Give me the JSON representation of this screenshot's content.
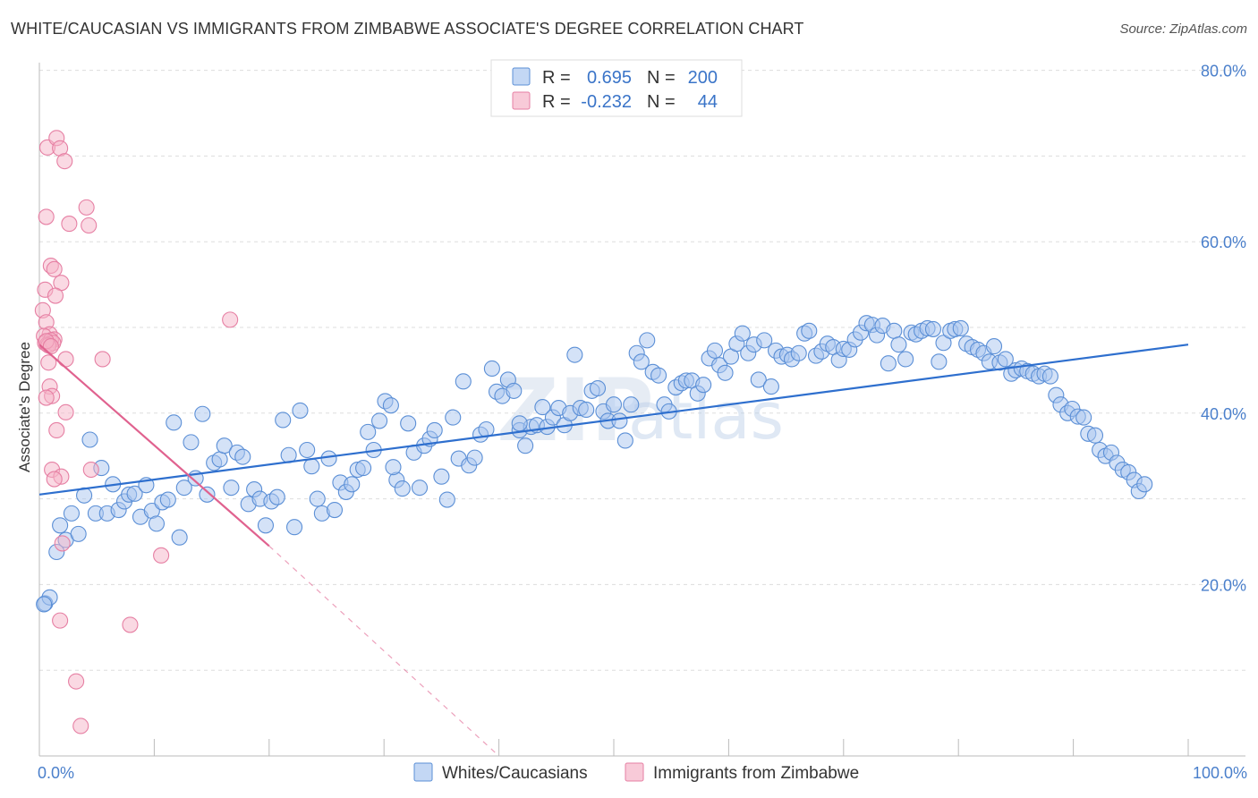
{
  "title": "WHITE/CAUCASIAN VS IMMIGRANTS FROM ZIMBABWE ASSOCIATE'S DEGREE CORRELATION CHART",
  "source": "Source: ZipAtlas.com",
  "watermark": {
    "zip": "ZIP",
    "atlas": "atlas"
  },
  "colors": {
    "blue_fill": "#a9c6ef",
    "blue_stroke": "#5b8fd6",
    "blue_line": "#2e6fce",
    "pink_fill": "#f5b3c8",
    "pink_stroke": "#e67fa3",
    "pink_line": "#e0628f",
    "grid": "#dddddd",
    "tick_text": "#4a7fcb"
  },
  "legend": {
    "r_label": "R =",
    "n_label": "N =",
    "rows": [
      {
        "series": "blue",
        "r": "0.695",
        "n": "200"
      },
      {
        "series": "pink",
        "r": "-0.232",
        "n": "44"
      }
    ]
  },
  "chart_data": {
    "type": "scatter",
    "title": "WHITE/CAUCASIAN VS IMMIGRANTS FROM ZIMBABWE ASSOCIATE'S DEGREE CORRELATION CHART",
    "xlabel": "",
    "ylabel": "Associate's Degree",
    "xlim": [
      0,
      100
    ],
    "ylim": [
      0,
      83
    ],
    "x_tick_labels": [
      "0.0%",
      "100.0%"
    ],
    "y_ticks": [
      20,
      40,
      60,
      80
    ],
    "y_tick_labels": [
      "20.0%",
      "40.0%",
      "60.0%",
      "80.0%"
    ],
    "grid": true,
    "legend_position": "top-center",
    "series": [
      {
        "name": "Whites/Caucasians",
        "color": "#a9c6ef",
        "trend": {
          "x": [
            0,
            100
          ],
          "y": [
            30.5,
            48.0
          ],
          "dashed_extension": false
        },
        "points": [
          [
            0.5,
            17.8
          ],
          [
            0.9,
            18.5
          ],
          [
            1.5,
            23.8
          ],
          [
            1.8,
            26.9
          ],
          [
            2.3,
            25.2
          ],
          [
            2.8,
            28.3
          ],
          [
            3.4,
            25.9
          ],
          [
            3.9,
            30.4
          ],
          [
            4.4,
            36.9
          ],
          [
            4.9,
            28.3
          ],
          [
            5.4,
            33.6
          ],
          [
            5.9,
            28.3
          ],
          [
            6.4,
            31.7
          ],
          [
            6.9,
            28.7
          ],
          [
            7.4,
            29.7
          ],
          [
            7.8,
            30.5
          ],
          [
            8.3,
            30.6
          ],
          [
            8.8,
            27.9
          ],
          [
            9.3,
            31.6
          ],
          [
            9.8,
            28.6
          ],
          [
            10.2,
            27.1
          ],
          [
            10.7,
            29.6
          ],
          [
            11.2,
            29.9
          ],
          [
            11.7,
            38.9
          ],
          [
            12.2,
            25.5
          ],
          [
            12.6,
            31.3
          ],
          [
            13.2,
            36.6
          ],
          [
            13.6,
            32.4
          ],
          [
            14.2,
            39.9
          ],
          [
            14.6,
            30.5
          ],
          [
            15.2,
            34.2
          ],
          [
            15.7,
            34.6
          ],
          [
            16.1,
            36.2
          ],
          [
            16.7,
            31.3
          ],
          [
            17.2,
            35.4
          ],
          [
            17.7,
            34.9
          ],
          [
            18.2,
            29.4
          ],
          [
            18.7,
            31.1
          ],
          [
            19.2,
            30.0
          ],
          [
            19.7,
            26.9
          ],
          [
            20.2,
            29.7
          ],
          [
            20.7,
            30.2
          ],
          [
            21.2,
            39.2
          ],
          [
            21.7,
            35.1
          ],
          [
            22.2,
            26.7
          ],
          [
            22.7,
            40.3
          ],
          [
            23.3,
            35.7
          ],
          [
            23.7,
            33.8
          ],
          [
            24.2,
            30.0
          ],
          [
            24.6,
            28.3
          ],
          [
            25.2,
            34.7
          ],
          [
            25.7,
            28.7
          ],
          [
            26.2,
            31.9
          ],
          [
            26.7,
            30.8
          ],
          [
            27.2,
            31.7
          ],
          [
            27.7,
            33.4
          ],
          [
            28.2,
            33.6
          ],
          [
            28.6,
            37.8
          ],
          [
            29.1,
            35.7
          ],
          [
            29.6,
            39.1
          ],
          [
            30.1,
            41.4
          ],
          [
            30.6,
            40.9
          ],
          [
            31.1,
            32.2
          ],
          [
            31.6,
            31.2
          ],
          [
            32.1,
            38.8
          ],
          [
            32.6,
            35.4
          ],
          [
            33.1,
            31.3
          ],
          [
            33.5,
            36.2
          ],
          [
            34.0,
            37.0
          ],
          [
            34.4,
            38.0
          ],
          [
            35.0,
            32.6
          ],
          [
            35.5,
            29.9
          ],
          [
            36.0,
            39.5
          ],
          [
            36.5,
            34.7
          ],
          [
            36.9,
            43.7
          ],
          [
            37.4,
            33.9
          ],
          [
            37.9,
            34.8
          ],
          [
            38.4,
            37.5
          ],
          [
            38.9,
            38.1
          ],
          [
            39.4,
            45.2
          ],
          [
            39.8,
            42.5
          ],
          [
            40.3,
            42.0
          ],
          [
            40.8,
            43.9
          ],
          [
            41.3,
            42.6
          ],
          [
            41.8,
            38.0
          ],
          [
            42.3,
            36.2
          ],
          [
            42.8,
            38.4
          ],
          [
            43.3,
            38.6
          ],
          [
            43.8,
            40.7
          ],
          [
            44.2,
            38.4
          ],
          [
            44.7,
            39.5
          ],
          [
            45.2,
            40.6
          ],
          [
            45.7,
            38.6
          ],
          [
            46.2,
            40.0
          ],
          [
            46.6,
            46.8
          ],
          [
            47.1,
            40.6
          ],
          [
            47.6,
            40.4
          ],
          [
            48.1,
            42.6
          ],
          [
            48.6,
            42.9
          ],
          [
            49.1,
            40.2
          ],
          [
            49.5,
            39.1
          ],
          [
            50.0,
            41.0
          ],
          [
            50.5,
            39.1
          ],
          [
            51.0,
            36.8
          ],
          [
            51.5,
            41.0
          ],
          [
            52.0,
            47.0
          ],
          [
            52.4,
            46.0
          ],
          [
            52.9,
            48.5
          ],
          [
            53.4,
            44.8
          ],
          [
            53.9,
            44.4
          ],
          [
            54.4,
            41.0
          ],
          [
            54.8,
            40.2
          ],
          [
            55.4,
            43.0
          ],
          [
            55.9,
            43.5
          ],
          [
            56.3,
            43.8
          ],
          [
            56.8,
            43.8
          ],
          [
            57.3,
            42.3
          ],
          [
            57.8,
            43.3
          ],
          [
            58.3,
            46.4
          ],
          [
            58.8,
            47.3
          ],
          [
            59.2,
            45.6
          ],
          [
            59.7,
            44.7
          ],
          [
            60.2,
            46.6
          ],
          [
            60.7,
            48.1
          ],
          [
            61.2,
            49.3
          ],
          [
            61.7,
            47.0
          ],
          [
            62.2,
            48.0
          ],
          [
            62.6,
            43.9
          ],
          [
            63.1,
            48.5
          ],
          [
            63.7,
            43.1
          ],
          [
            64.1,
            47.3
          ],
          [
            64.6,
            46.6
          ],
          [
            65.1,
            46.8
          ],
          [
            65.5,
            46.3
          ],
          [
            66.1,
            47.0
          ],
          [
            66.6,
            49.3
          ],
          [
            67.0,
            49.6
          ],
          [
            67.6,
            46.7
          ],
          [
            68.1,
            47.2
          ],
          [
            68.6,
            48.1
          ],
          [
            69.1,
            47.7
          ],
          [
            69.6,
            46.2
          ],
          [
            70.0,
            47.5
          ],
          [
            70.5,
            47.4
          ],
          [
            71.0,
            48.6
          ],
          [
            71.5,
            49.4
          ],
          [
            72.0,
            50.5
          ],
          [
            72.5,
            50.3
          ],
          [
            72.9,
            49.1
          ],
          [
            73.4,
            50.2
          ],
          [
            73.9,
            45.8
          ],
          [
            74.4,
            49.6
          ],
          [
            74.8,
            48.0
          ],
          [
            75.4,
            46.3
          ],
          [
            75.9,
            49.4
          ],
          [
            76.3,
            49.2
          ],
          [
            76.8,
            49.6
          ],
          [
            77.3,
            49.9
          ],
          [
            77.8,
            49.8
          ],
          [
            78.3,
            46.0
          ],
          [
            78.7,
            48.2
          ],
          [
            79.3,
            49.6
          ],
          [
            79.7,
            49.8
          ],
          [
            80.2,
            49.9
          ],
          [
            80.7,
            48.1
          ],
          [
            81.2,
            47.7
          ],
          [
            81.7,
            47.4
          ],
          [
            82.2,
            47.0
          ],
          [
            82.7,
            46.0
          ],
          [
            83.1,
            47.8
          ],
          [
            83.6,
            45.9
          ],
          [
            84.1,
            46.3
          ],
          [
            84.6,
            44.6
          ],
          [
            85.0,
            45.0
          ],
          [
            85.5,
            45.2
          ],
          [
            86.0,
            44.9
          ],
          [
            86.5,
            44.6
          ],
          [
            87.0,
            44.3
          ],
          [
            87.5,
            44.6
          ],
          [
            88.0,
            44.3
          ],
          [
            88.5,
            42.1
          ],
          [
            88.9,
            41.0
          ],
          [
            89.5,
            40.0
          ],
          [
            89.9,
            40.5
          ],
          [
            90.4,
            39.6
          ],
          [
            90.9,
            39.5
          ],
          [
            91.3,
            37.6
          ],
          [
            91.9,
            37.4
          ],
          [
            92.3,
            35.7
          ],
          [
            92.8,
            35.0
          ],
          [
            93.3,
            35.4
          ],
          [
            93.8,
            34.2
          ],
          [
            94.3,
            33.4
          ],
          [
            94.8,
            33.1
          ],
          [
            95.3,
            32.2
          ],
          [
            95.7,
            30.9
          ],
          [
            96.2,
            31.7
          ],
          [
            0.4,
            17.7
          ],
          [
            30.8,
            33.7
          ],
          [
            41.8,
            38.8
          ]
        ]
      },
      {
        "name": "Immigrants from Zimbabwe",
        "color": "#f5b3c8",
        "trend": {
          "x": [
            0,
            20
          ],
          "y": [
            48.0,
            24.5
          ],
          "dashed_extension": {
            "x": [
              20,
              40
            ],
            "y": [
              24.5,
              0.0
            ]
          }
        },
        "points": [
          [
            0.7,
            71.0
          ],
          [
            1.5,
            72.1
          ],
          [
            1.8,
            70.9
          ],
          [
            2.2,
            69.4
          ],
          [
            0.6,
            62.9
          ],
          [
            2.6,
            62.1
          ],
          [
            4.1,
            64.0
          ],
          [
            4.3,
            61.9
          ],
          [
            1.0,
            57.2
          ],
          [
            1.3,
            56.8
          ],
          [
            1.9,
            55.2
          ],
          [
            0.5,
            54.4
          ],
          [
            1.4,
            53.7
          ],
          [
            0.3,
            52.0
          ],
          [
            0.6,
            50.6
          ],
          [
            16.6,
            50.9
          ],
          [
            0.9,
            49.2
          ],
          [
            0.4,
            49.0
          ],
          [
            1.3,
            48.6
          ],
          [
            0.5,
            48.2
          ],
          [
            1.0,
            48.5
          ],
          [
            0.7,
            48.0
          ],
          [
            1.2,
            48.2
          ],
          [
            0.8,
            47.9
          ],
          [
            0.6,
            48.4
          ],
          [
            1.0,
            47.8
          ],
          [
            2.3,
            46.3
          ],
          [
            5.5,
            46.3
          ],
          [
            0.8,
            45.9
          ],
          [
            0.9,
            43.1
          ],
          [
            1.1,
            42.0
          ],
          [
            0.6,
            41.8
          ],
          [
            2.3,
            40.1
          ],
          [
            1.5,
            38.0
          ],
          [
            4.5,
            33.4
          ],
          [
            1.1,
            33.4
          ],
          [
            1.9,
            32.6
          ],
          [
            1.3,
            32.3
          ],
          [
            2.0,
            24.8
          ],
          [
            10.6,
            23.4
          ],
          [
            1.8,
            15.8
          ],
          [
            7.9,
            15.3
          ],
          [
            3.2,
            8.7
          ],
          [
            3.6,
            3.5
          ]
        ]
      }
    ]
  },
  "bottom_legend": [
    {
      "label": "Whites/Caucasians",
      "series": "blue"
    },
    {
      "label": "Immigrants from Zimbabwe",
      "series": "pink"
    }
  ]
}
